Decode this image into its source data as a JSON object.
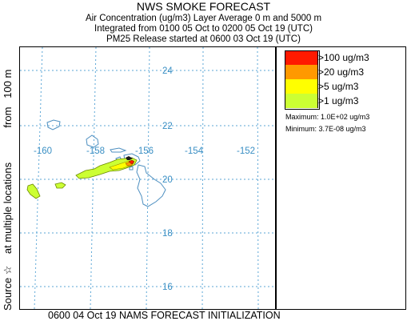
{
  "header": {
    "title": "NWS SMOKE FORECAST",
    "line1": "Air Concentration (ug/m3) Layer Average     0 m  and  5000 m",
    "line2": "Integrated from 0100 05 Oct to 0200 05 Oct 19 (UTC)",
    "line3": "PM25 Release started at 0600 03 Oct 19 (UTC)"
  },
  "side_label": "Source ☆    at multiple locations            from   100 m",
  "footer": "0600 04 Oct 19 NAMS FORECAST INITIALIZATION",
  "map": {
    "lat_labels": [
      "24",
      "22",
      "20",
      "18",
      "16"
    ],
    "lon_labels": [
      "-160",
      "-158",
      "-156",
      "-154",
      "-152"
    ],
    "grid_color": "#5ba6d6",
    "coast_color": "#4d8fc0",
    "label_color": "#3a8fc4"
  },
  "legend": {
    "items": [
      {
        "label": ">100 ug/m3",
        "color": "#ff1a00"
      },
      {
        "label": ">20 ug/m3",
        "color": "#ff9900"
      },
      {
        "label": ">5 ug/m3",
        "color": "#ffff00"
      },
      {
        "label": ">1 ug/m3",
        "color": "#ccff33"
      }
    ],
    "maximum": "Maximum: 1.0E+02 ug/m3",
    "minimum": "Minimum: 3.7E-08 ug/m3"
  }
}
